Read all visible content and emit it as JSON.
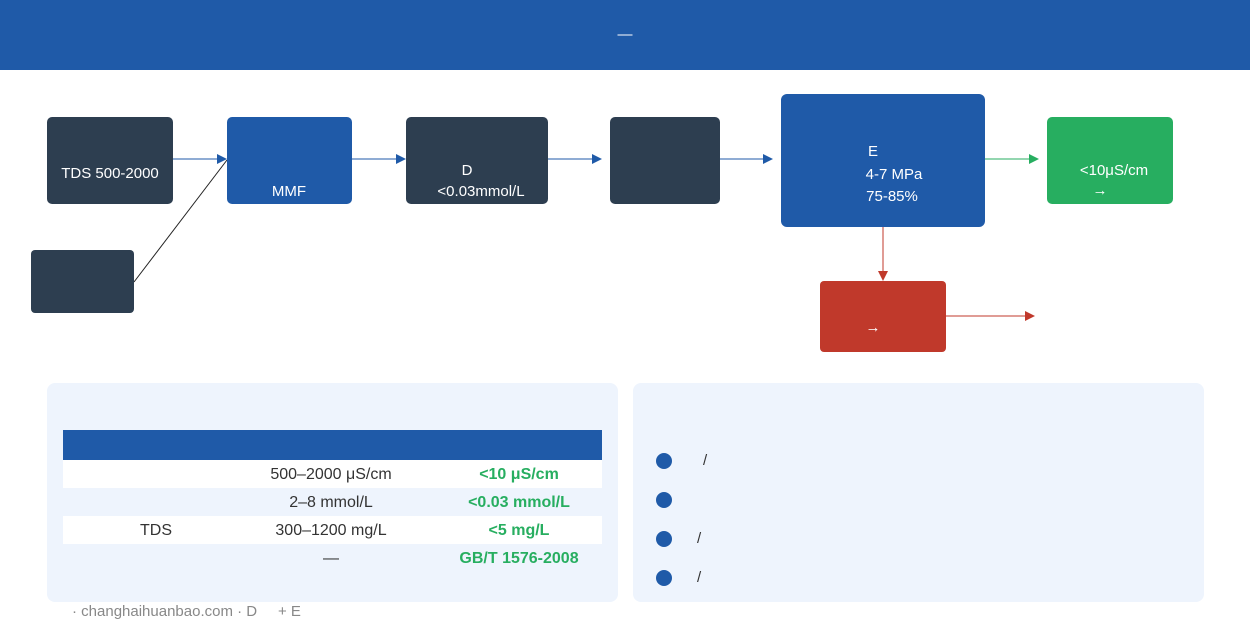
{
  "header": {
    "title": "—"
  },
  "flow": {
    "source": "TDS 500-2000",
    "filter": "MMF",
    "softener": {
      "name": "D",
      "spec": "<0.03mmol/L"
    },
    "ro": {
      "name": "E",
      "pressure": "4-7 MPa",
      "recovery": "75-85%"
    },
    "product": {
      "spec": "<10μS/cm",
      "arrow": "→"
    },
    "reject": {
      "arrow": "→"
    }
  },
  "table": {
    "rows": [
      {
        "range": "500–2000 μS/cm",
        "target": "<10 μS/cm"
      },
      {
        "range": "2–8 mmol/L",
        "target": "<0.03 mmol/L"
      },
      {
        "item": "TDS",
        "range": "300–1200 mg/L",
        "target": "<5 mg/L"
      },
      {
        "range": "—",
        "target": "GB/T 1576-2008"
      }
    ]
  },
  "notes": [
    "/",
    "/",
    "/"
  ],
  "footer": {
    "source": "· changhaihuanbao.com · D",
    "tail": "+ E"
  }
}
